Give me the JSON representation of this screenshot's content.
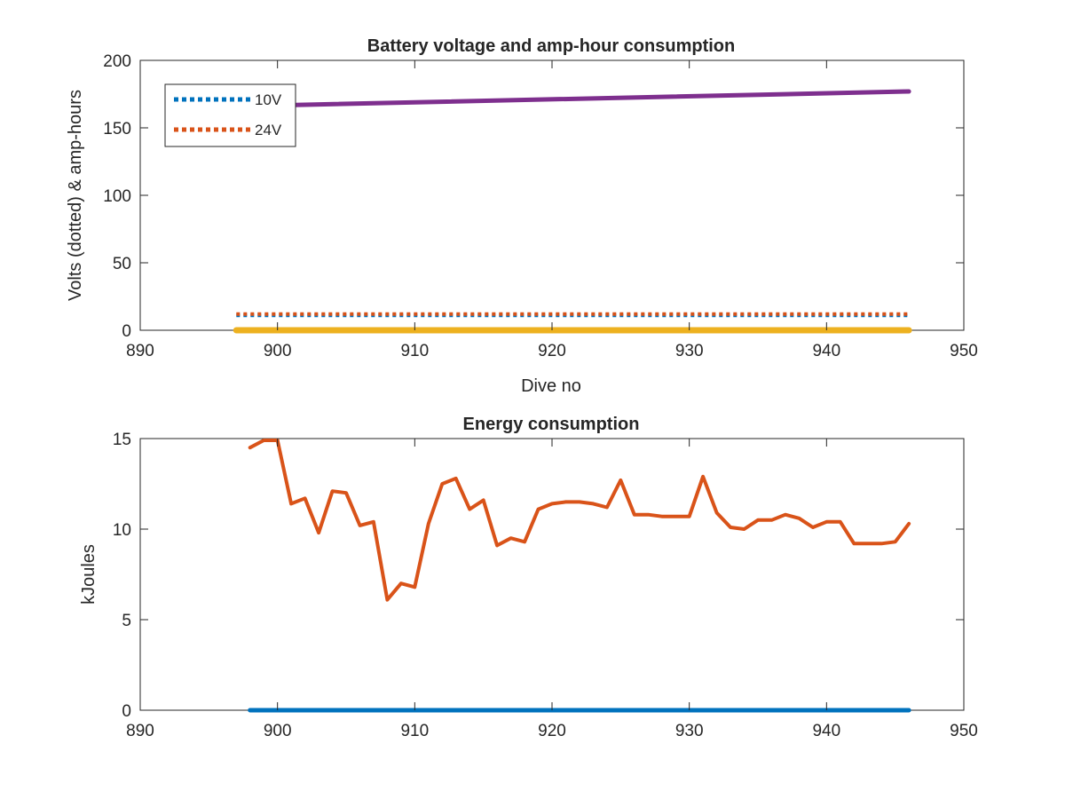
{
  "chart_data": [
    {
      "type": "line",
      "title": "Battery voltage and amp-hour consumption",
      "xlabel": "Dive no",
      "ylabel": "Volts (dotted) & amp-hours",
      "xlim": [
        890,
        950
      ],
      "ylim": [
        0,
        200
      ],
      "xticks": [
        890,
        900,
        910,
        920,
        930,
        940,
        950
      ],
      "yticks": [
        0,
        50,
        100,
        150,
        200
      ],
      "grid": false,
      "legend": {
        "placement": "top-left",
        "entries": [
          "10V",
          "24V"
        ]
      },
      "series": [
        {
          "name": "10V",
          "style": "dotted",
          "color": "#0072BD",
          "x": [
            897,
            946
          ],
          "y": [
            11,
            11
          ]
        },
        {
          "name": "24V",
          "style": "dotted",
          "color": "#D95319",
          "x": [
            897,
            946
          ],
          "y": [
            12,
            12
          ]
        },
        {
          "style": "solid",
          "color": "#EDB120",
          "x": [
            897,
            946
          ],
          "y": [
            0,
            0
          ]
        },
        {
          "style": "solid",
          "color": "#7E2F8E",
          "x": [
            897,
            946
          ],
          "y": [
            166,
            177
          ]
        }
      ]
    },
    {
      "type": "line",
      "title": "Energy consumption",
      "xlabel": "",
      "ylabel": "kJoules",
      "xlim": [
        890,
        950
      ],
      "ylim": [
        0,
        15
      ],
      "xticks": [
        890,
        900,
        910,
        920,
        930,
        940,
        950
      ],
      "yticks": [
        0,
        5,
        10,
        15
      ],
      "grid": false,
      "series": [
        {
          "style": "solid",
          "color": "#0072BD",
          "x": [
            898,
            946
          ],
          "y": [
            0,
            0
          ]
        },
        {
          "style": "solid",
          "color": "#D95319",
          "x": [
            898,
            899,
            900,
            901,
            902,
            903,
            904,
            905,
            906,
            907,
            908,
            909,
            910,
            911,
            912,
            913,
            914,
            915,
            916,
            917,
            918,
            919,
            920,
            921,
            922,
            923,
            924,
            925,
            926,
            927,
            928,
            929,
            930,
            931,
            932,
            933,
            934,
            935,
            936,
            937,
            938,
            939,
            940,
            941,
            942,
            943,
            944,
            945,
            946
          ],
          "y": [
            14.5,
            14.9,
            14.9,
            11.4,
            11.7,
            9.8,
            12.1,
            12.0,
            10.2,
            10.4,
            6.1,
            7.0,
            6.8,
            10.3,
            12.5,
            12.8,
            11.1,
            11.6,
            9.1,
            9.5,
            9.3,
            11.1,
            11.4,
            11.5,
            11.5,
            11.4,
            11.2,
            12.7,
            10.8,
            10.8,
            10.7,
            10.7,
            10.7,
            12.9,
            10.9,
            10.1,
            10.0,
            10.5,
            10.5,
            10.8,
            10.6,
            10.1,
            10.4,
            10.4,
            9.2,
            9.2,
            9.2,
            9.3,
            10.3
          ]
        }
      ]
    }
  ]
}
